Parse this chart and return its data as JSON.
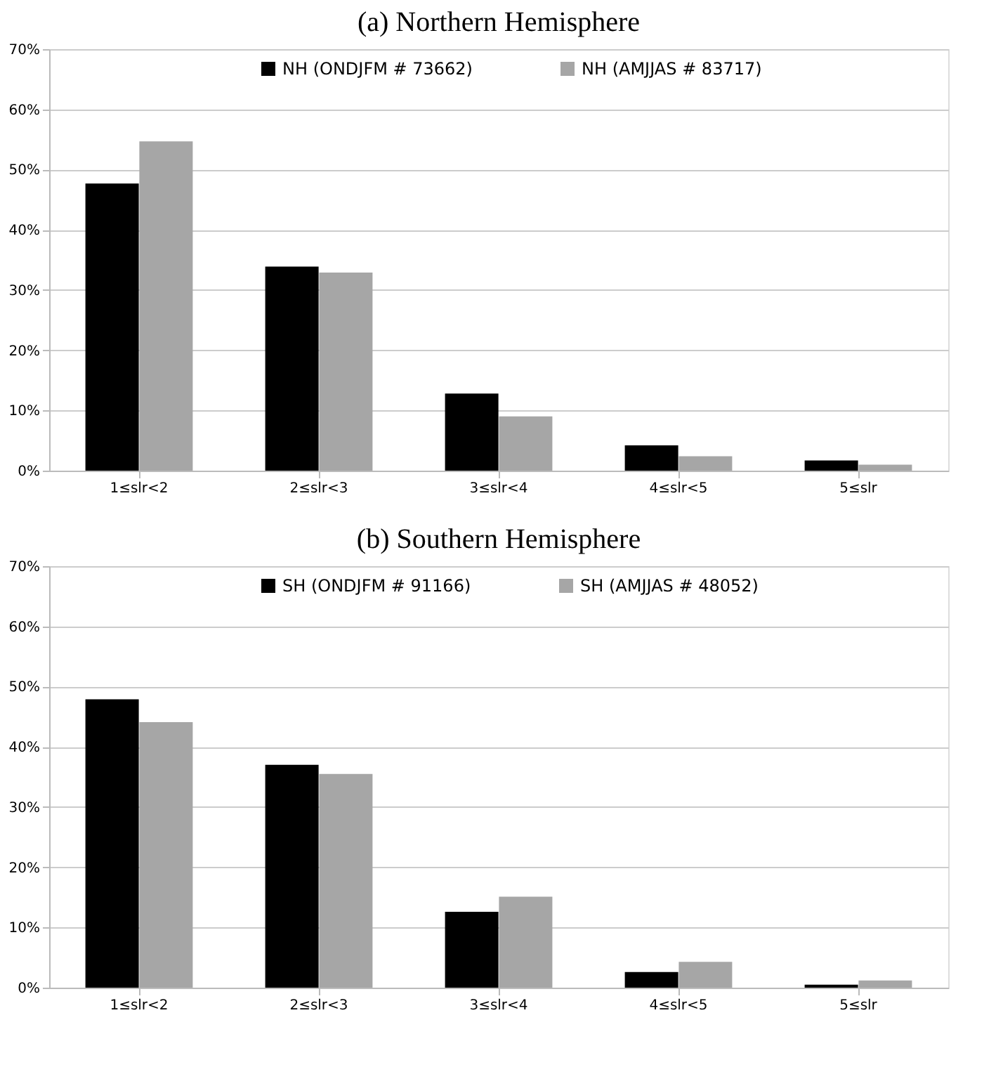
{
  "chart_data": [
    {
      "type": "bar",
      "title": "(a)  Northern Hemisphere",
      "categories": [
        "1≤slr<2",
        "2≤slr<3",
        "3≤slr<4",
        "4≤slr<5",
        "5≤slr"
      ],
      "series": [
        {
          "name": "NH    (ONDJFM # 73662)",
          "color": "#000000",
          "values": [
            47.7,
            33.9,
            12.8,
            4.2,
            1.7
          ]
        },
        {
          "name": "NH    (AMJJAS # 83717)",
          "color": "#a6a6a6",
          "values": [
            54.7,
            32.9,
            9.0,
            2.4,
            1.0
          ]
        }
      ],
      "ylim": [
        0,
        70
      ],
      "yticks": [
        {
          "value": 0,
          "label": "0%"
        },
        {
          "value": 10,
          "label": "10%"
        },
        {
          "value": 20,
          "label": "20%"
        },
        {
          "value": 30,
          "label": "30%"
        },
        {
          "value": 40,
          "label": "40%"
        },
        {
          "value": 50,
          "label": "50%"
        },
        {
          "value": 60,
          "label": "60%"
        },
        {
          "value": 70,
          "label": "70%"
        }
      ],
      "grid": "y",
      "legend": "top"
    },
    {
      "type": "bar",
      "title": "(b)  Southern Hemisphere",
      "categories": [
        "1≤slr<2",
        "2≤slr<3",
        "3≤slr<4",
        "4≤slr<5",
        "5≤slr"
      ],
      "series": [
        {
          "name": "SH    (ONDJFM # 91166)",
          "color": "#000000",
          "values": [
            47.9,
            37.0,
            12.6,
            2.6,
            0.5
          ]
        },
        {
          "name": "SH    (AMJJAS # 48052)",
          "color": "#a6a6a6",
          "values": [
            44.1,
            35.5,
            15.1,
            4.3,
            1.2
          ]
        }
      ],
      "ylim": [
        0,
        70
      ],
      "yticks": [
        {
          "value": 0,
          "label": "0%"
        },
        {
          "value": 10,
          "label": "10%"
        },
        {
          "value": 20,
          "label": "20%"
        },
        {
          "value": 30,
          "label": "30%"
        },
        {
          "value": 40,
          "label": "40%"
        },
        {
          "value": 50,
          "label": "50%"
        },
        {
          "value": 60,
          "label": "60%"
        },
        {
          "value": 70,
          "label": "70%"
        }
      ],
      "grid": "y",
      "legend": "top"
    }
  ]
}
